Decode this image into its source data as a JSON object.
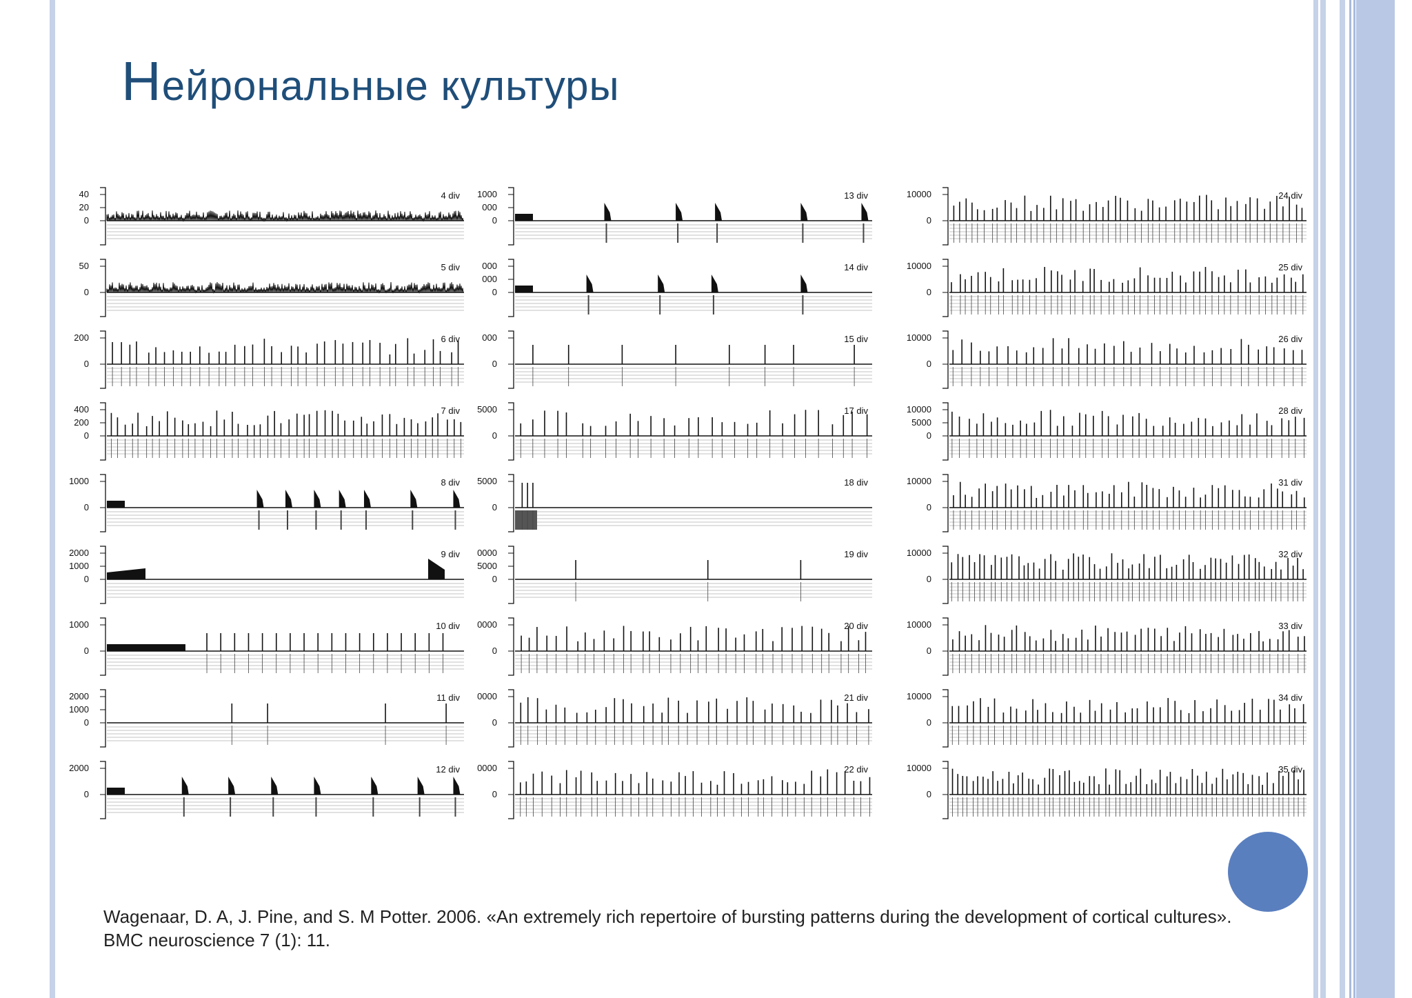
{
  "slide": {
    "title_first": "Н",
    "title_rest": "ейрональные культуры",
    "citation_line1": "Wagenaar, D. A, J. Pine, and S. M Potter. 2006. «An extremely rich repertoire of bursting patterns during the development of cortical cultures».",
    "citation_line2": "BMC neuroscience 7 (1): 11."
  },
  "colors": {
    "title": "#1f4e79",
    "accent_circle": "#5a7fbf",
    "side_bars": "#c5d2e8",
    "trace": "#111111"
  },
  "chart_data": {
    "type": "line",
    "panels": [
      {
        "label": "4 div",
        "ticks": [
          "40",
          "20",
          "0"
        ],
        "pattern": "noise"
      },
      {
        "label": "5 div",
        "ticks": [
          "50",
          "0"
        ],
        "pattern": "noise"
      },
      {
        "label": "6 div",
        "ticks": [
          "200",
          "0"
        ],
        "pattern": "spikes",
        "count": 40
      },
      {
        "label": "7 div",
        "ticks": [
          "400",
          "200",
          "0"
        ],
        "pattern": "spikes",
        "count": 50
      },
      {
        "label": "8 div",
        "ticks": [
          "1000",
          "0"
        ],
        "pattern": "bursts",
        "bursts": [
          0.42,
          0.5,
          0.58,
          0.65,
          0.72,
          0.85,
          0.97
        ]
      },
      {
        "label": "9 div",
        "ticks": [
          "2000",
          "1000",
          "0"
        ],
        "pattern": "burst-edges"
      },
      {
        "label": "10 div",
        "ticks": [
          "1000",
          "0"
        ],
        "pattern": "spikes-after",
        "count": 18
      },
      {
        "label": "11 div",
        "ticks": [
          "2000",
          "1000",
          "0"
        ],
        "pattern": "sparse",
        "spikes": [
          0.35,
          0.45,
          0.78,
          0.95
        ]
      },
      {
        "label": "12 div",
        "ticks": [
          "2000",
          "0"
        ],
        "pattern": "bursts",
        "bursts": [
          0.21,
          0.34,
          0.46,
          0.58,
          0.74,
          0.87,
          0.98
        ]
      },
      {
        "label": "13 div",
        "ticks": [
          "1000",
          "000",
          "0"
        ],
        "pattern": "bursts",
        "bursts": [
          0.25,
          0.45,
          0.56,
          0.8,
          0.98
        ]
      },
      {
        "label": "14 div",
        "ticks": [
          "000",
          "000",
          "0"
        ],
        "pattern": "bursts",
        "bursts": [
          0.2,
          0.4,
          0.55,
          0.8
        ]
      },
      {
        "label": "15 div",
        "ticks": [
          "000",
          "0"
        ],
        "pattern": "sparse",
        "spikes": [
          0.05,
          0.15,
          0.3,
          0.45,
          0.6,
          0.7,
          0.78,
          0.95
        ]
      },
      {
        "label": "17 div",
        "ticks": [
          "5000",
          "0"
        ],
        "pattern": "spikes",
        "count": 30
      },
      {
        "label": "18 div",
        "ticks": [
          "5000",
          "0"
        ],
        "pattern": "start-only"
      },
      {
        "label": "19 div",
        "ticks": [
          "0000",
          "5000",
          "0"
        ],
        "pattern": "sparse",
        "spikes": [
          0.17,
          0.54,
          0.8
        ]
      },
      {
        "label": "20 div",
        "ticks": [
          "0000",
          "0"
        ],
        "pattern": "spikes",
        "count": 38
      },
      {
        "label": "21 div",
        "ticks": [
          "0000",
          "0"
        ],
        "pattern": "spikes",
        "count": 38
      },
      {
        "label": "22 div",
        "ticks": [
          "0000",
          "0"
        ],
        "pattern": "spikes",
        "count": 45
      },
      {
        "label": "24 div",
        "ticks": [
          "10000",
          "0"
        ],
        "pattern": "spikes",
        "count": 55
      },
      {
        "label": "25 div",
        "ticks": [
          "10000",
          "0"
        ],
        "pattern": "spikes",
        "count": 55
      },
      {
        "label": "26 div",
        "ticks": [
          "10000",
          "0"
        ],
        "pattern": "spikes",
        "count": 40
      },
      {
        "label": "28 div",
        "ticks": [
          "10000",
          "5000",
          "0"
        ],
        "pattern": "spikes",
        "count": 48
      },
      {
        "label": "31 div",
        "ticks": [
          "10000",
          "0"
        ],
        "pattern": "spikes",
        "count": 55
      },
      {
        "label": "32 div",
        "ticks": [
          "10000",
          "0"
        ],
        "pattern": "spikes",
        "count": 65
      },
      {
        "label": "33 div",
        "ticks": [
          "10000",
          "0"
        ],
        "pattern": "spikes",
        "count": 55
      },
      {
        "label": "34 div",
        "ticks": [
          "10000",
          "0"
        ],
        "pattern": "spikes",
        "count": 50
      },
      {
        "label": "35 div",
        "ticks": [
          "10000",
          "0"
        ],
        "pattern": "spikes",
        "count": 70
      }
    ]
  }
}
